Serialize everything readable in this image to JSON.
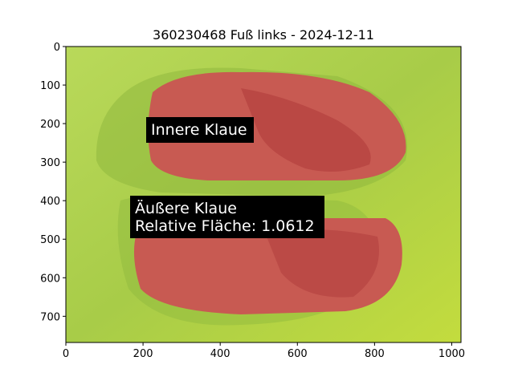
{
  "chart_data": {
    "type": "image",
    "title": "360230468 Fuß links - 2024-12-11",
    "xlim": [
      0,
      1024
    ],
    "ylim": [
      0,
      768
    ],
    "y_inverted": true,
    "xticks": [
      0,
      200,
      400,
      600,
      800,
      1000
    ],
    "yticks": [
      0,
      100,
      200,
      300,
      400,
      500,
      600,
      700
    ],
    "annotations": [
      {
        "lines": [
          "Innere Klaue"
        ]
      },
      {
        "lines": [
          "Äußere Klaue",
          "Relative Fläche: 1.0612"
        ]
      }
    ]
  }
}
